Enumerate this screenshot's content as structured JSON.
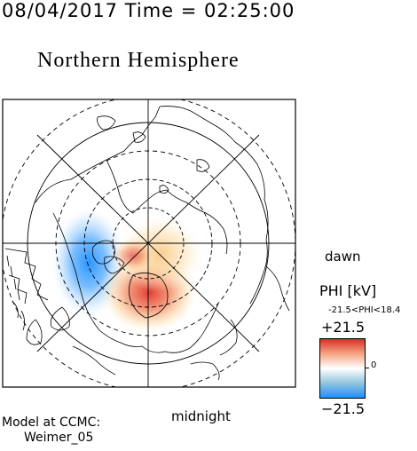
{
  "header": {
    "datetime": "08/04/2017 Time = 02:25:00",
    "hemisphere": "Northern Hemisphere"
  },
  "map": {
    "dawn_label": "dawn",
    "midnight_label": "midnight"
  },
  "colorbar": {
    "title": "PHI [kV]",
    "range_text": "-21.5<PHI<18.4",
    "max_label": "+21.5",
    "mid_label": "0",
    "min_label": "−21.5",
    "colors": [
      "#d73027",
      "#f4a582",
      "#ffffff",
      "#92c5de",
      "#1e90ff"
    ]
  },
  "footer": {
    "model_line1": "Model at CCMC:",
    "model_line2": "Weimer_05"
  }
}
